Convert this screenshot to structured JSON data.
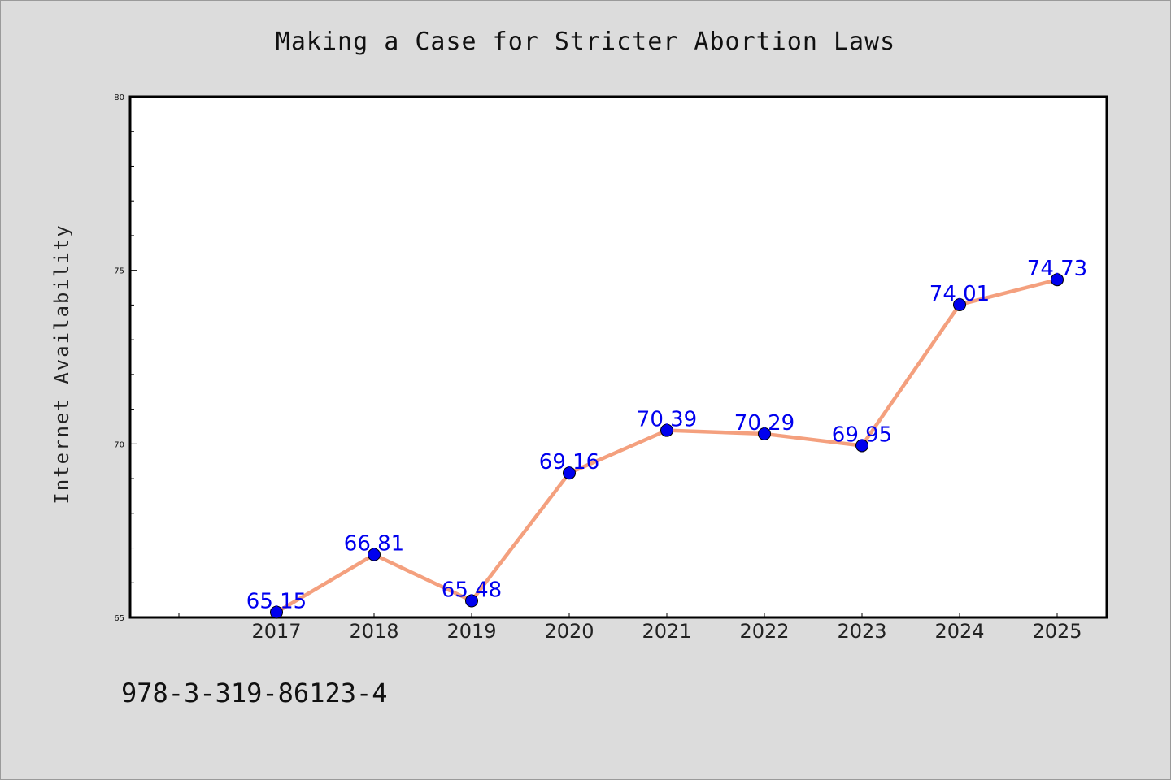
{
  "chart_data": {
    "type": "line",
    "title": "Making a Case for Stricter Abortion Laws",
    "xlabel": "",
    "ylabel": "Internet Availability",
    "categories": [
      "2017",
      "2018",
      "2019",
      "2020",
      "2021",
      "2022",
      "2023",
      "2024",
      "2025"
    ],
    "series": [
      {
        "values": [
          65.15,
          66.81,
          65.48,
          69.16,
          70.39,
          70.29,
          69.95,
          74.01,
          74.73
        ],
        "labels": [
          "65.15",
          "66.81",
          "65.48",
          "69.16",
          "70.39",
          "70.29",
          "69.95",
          "74.01",
          "74.73"
        ],
        "line_color": "#f4a07e",
        "marker_color": "#0000ee"
      }
    ],
    "ylim": [
      65,
      80
    ],
    "y_ticks": [
      "65",
      "70",
      "75",
      "80"
    ],
    "grid": false,
    "legend": "none",
    "label_color": "#0000ee"
  },
  "footer": {
    "code": "978-3-319-86123-4"
  },
  "colors": {
    "background": "#dcdcdc",
    "plot_background": "#ffffff",
    "axis": "#000000"
  }
}
